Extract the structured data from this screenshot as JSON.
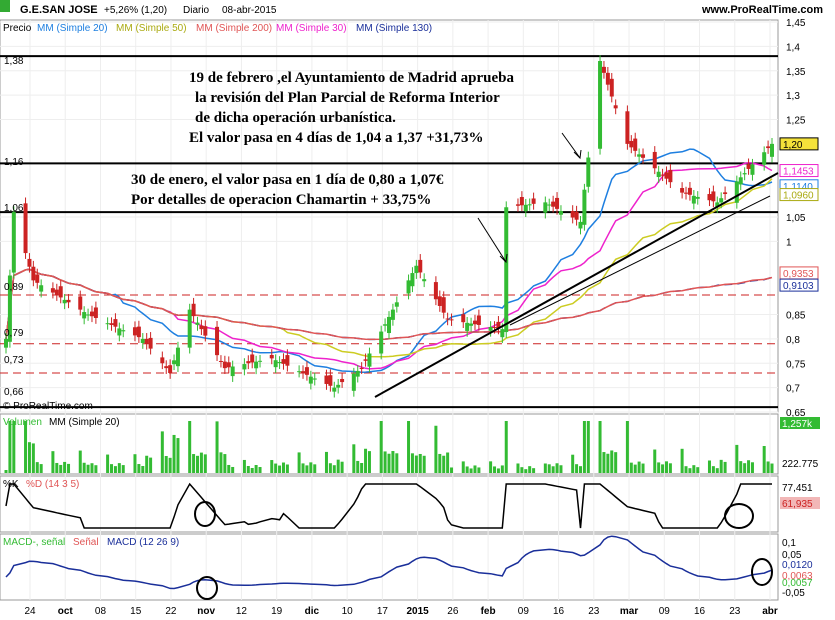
{
  "header": {
    "ticker": "G.E.SAN JOSE",
    "change": "+5,26% (1,20)",
    "period": "Diario",
    "date": "08-abr-2015",
    "site": "www.ProRealTime.com"
  },
  "colors": {
    "up": "#33bb33",
    "down": "#cc2222",
    "mm20": "#1e7fe0",
    "mm50": "#cccc22",
    "mm200": "#e05555",
    "mm30": "#ee22cc",
    "mm130": "#1a2f9a"
  },
  "price_panel": {
    "legend": [
      "Precio",
      "MM (Simple 20)",
      "MM (Simple 50)",
      "MM (Simple 200)",
      "MM (Simple 30)",
      "MM (Simple 130)"
    ],
    "left_labels": [
      "1,38",
      "1,16",
      "1,06",
      "0,89",
      "0,79",
      "0,73",
      "0,66"
    ],
    "right_axis": [
      "1,45",
      "1,4",
      "1,35",
      "1,3",
      "1,25",
      "1,20",
      "1,1453",
      "1,1140",
      "1,0960",
      "1,05",
      "1",
      "0,9353",
      "0,9103",
      "0,85",
      "0,8",
      "0,75",
      "0,7",
      "0,65"
    ],
    "copyright": "© ProRealTime.com",
    "annotation1": [
      "19 de febrero ,el Ayuntamiento de Madrid aprueba",
      "la revisión del Plan Parcial de Reforma Interior",
      "de dicha operación urbanística.",
      "El valor pasa en 4 días de 1,04 a 1,37 +31,73%"
    ],
    "annotation2": [
      "30 de enero, el valor pasa en 1 día de 0,80 a 1,07€",
      "Por detalles de operacion Chamartin + 33,75%"
    ]
  },
  "volume_panel": {
    "legend": [
      "Volumen",
      "MM (Simple 20)"
    ],
    "right_labels": [
      "1,257k",
      "222.775"
    ]
  },
  "stoch_panel": {
    "legend": [
      "%K",
      "%D (14 3 5)"
    ],
    "right_labels": [
      "77,451",
      "61,935"
    ]
  },
  "macd_panel": {
    "legend": [
      "MACD-, señal",
      "Señal",
      "MACD (12 26 9)"
    ],
    "right_labels": [
      "0,1",
      "0,05",
      "0,0120",
      "0,0063",
      "0,0057",
      "-0,05"
    ]
  },
  "x_axis": [
    "24",
    "oct",
    "08",
    "15",
    "22",
    "nov",
    "12",
    "19",
    "dic",
    "10",
    "17",
    "2015",
    "26",
    "feb",
    "09",
    "16",
    "23",
    "mar",
    "09",
    "16",
    "23",
    "abr"
  ],
  "chart_data": {
    "type": "candlestick",
    "title": "G.E.SAN JOSE",
    "date_range": [
      "2014-09-24",
      "2015-04-08"
    ],
    "ylim": [
      0.65,
      1.45
    ],
    "last_close": 1.2,
    "horizontal_levels": [
      1.38,
      1.16,
      1.06,
      0.89,
      0.79,
      0.73,
      0.66
    ],
    "key_closes": [
      {
        "x": "2014-09-24",
        "y": 0.8
      },
      {
        "x": "2014-09-26",
        "y": 1.06
      },
      {
        "x": "2014-10-01",
        "y": 0.92
      },
      {
        "x": "2014-10-15",
        "y": 0.85
      },
      {
        "x": "2014-10-29",
        "y": 0.8
      },
      {
        "x": "2014-11-05",
        "y": 0.73
      },
      {
        "x": "2014-11-10",
        "y": 0.86
      },
      {
        "x": "2014-11-19",
        "y": 0.74
      },
      {
        "x": "2014-12-01",
        "y": 0.76
      },
      {
        "x": "2014-12-17",
        "y": 0.7
      },
      {
        "x": "2014-12-24",
        "y": 0.74
      },
      {
        "x": "2015-01-07",
        "y": 0.95
      },
      {
        "x": "2015-01-15",
        "y": 0.84
      },
      {
        "x": "2015-01-29",
        "y": 0.82
      },
      {
        "x": "2015-01-30",
        "y": 1.07
      },
      {
        "x": "2015-02-09",
        "y": 1.08
      },
      {
        "x": "2015-02-18",
        "y": 1.04
      },
      {
        "x": "2015-02-23",
        "y": 1.37
      },
      {
        "x": "2015-03-02",
        "y": 1.2
      },
      {
        "x": "2015-03-16",
        "y": 1.1
      },
      {
        "x": "2015-03-25",
        "y": 1.08
      },
      {
        "x": "2015-04-08",
        "y": 1.2
      }
    ],
    "moving_average_last": {
      "MM 20": 1.114,
      "MM 50": 1.096,
      "MM 200": 0.9353,
      "MM 30": 1.1453,
      "MM 130": 0.9103
    },
    "volume_last": {
      "Volumen": 1257000,
      "MM (Simple 20)": 222775
    },
    "stochastic_last": {
      "%K": 77.451,
      "%D": 61.935
    },
    "macd_last": {
      "MACD": 0.012,
      "Señal": 0.0063,
      "MACD-, señal": 0.0057
    }
  }
}
